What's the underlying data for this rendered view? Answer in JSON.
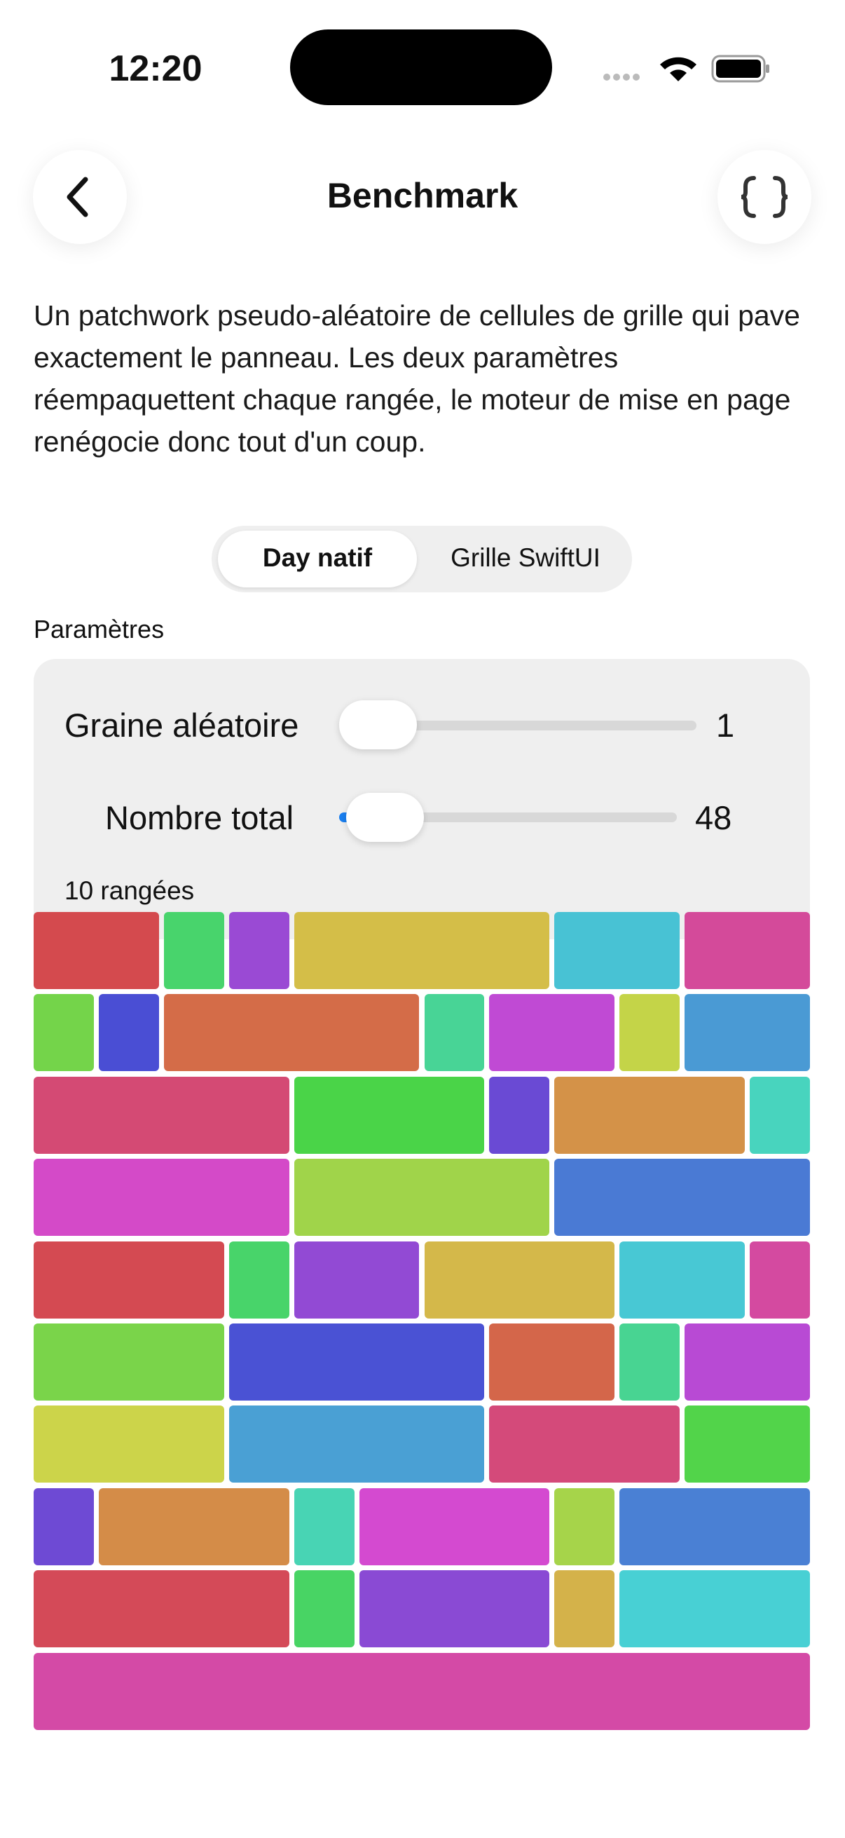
{
  "status_bar": {
    "time": "12:20"
  },
  "nav": {
    "title": "Benchmark"
  },
  "description": "Un patchwork pseudo-aléatoire de cellules de grille qui pave exactement le panneau. Les deux paramètres réempaquettent chaque rangée, le moteur de mise en page renégocie donc tout d'un coup.",
  "segmented_control": {
    "options": [
      "Day natif",
      "Grille SwiftUI"
    ],
    "selected": "Day natif"
  },
  "section_label": "Paramètres",
  "sliders": [
    {
      "label": "Graine aléatoire",
      "value": 1
    },
    {
      "label": "Nombre total",
      "value": 48
    }
  ],
  "rows_label": "10 rangées"
}
